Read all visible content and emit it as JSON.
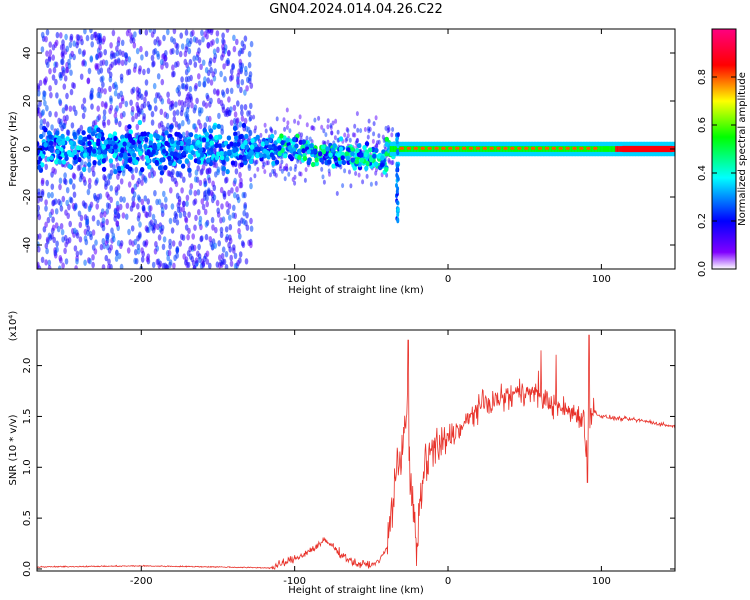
{
  "title": "GN04.2024.014.04.26.C22",
  "chart_data": [
    {
      "type": "heatmap",
      "xlabel": "Height of straight line (km)",
      "ylabel": "Frequency (Hz)",
      "xlim": [
        -268,
        148
      ],
      "ylim": [
        -50,
        50
      ],
      "xticks": [
        -200,
        -100,
        0,
        100
      ],
      "xtick_labels": [
        "-200",
        "-100",
        "0",
        "100"
      ],
      "yticks": [
        -40,
        -20,
        0,
        20,
        40
      ],
      "ytick_labels": [
        "-40",
        "-20",
        "0",
        "20",
        "40"
      ],
      "colorbar": {
        "label": "Normalized spectral amplitude",
        "range": [
          0,
          1
        ],
        "ticks": [
          0,
          0.2,
          0.4,
          0.6,
          0.8
        ],
        "tick_labels": [
          "0.0",
          "0.2",
          "0.4",
          "0.6",
          "0.8"
        ],
        "colors": [
          "#ffffff",
          "#8000ff",
          "#0000ff",
          "#00ffff",
          "#00ff00",
          "#ffff00",
          "#ff0000",
          "#ff0080"
        ]
      },
      "features": [
        {
          "x": [
            -268,
            -130
          ],
          "freq_spread": 50,
          "amplitude": 0.25
        },
        {
          "x": [
            -130,
            -35
          ],
          "freq_spread": 8,
          "amplitude": 0.4
        },
        {
          "x": [
            -35,
            148
          ],
          "freq_spread": 2,
          "amplitude": 0.7
        },
        {
          "x": [
            110,
            148
          ],
          "freq_spread": 1,
          "amplitude": 0.85
        }
      ]
    },
    {
      "type": "line",
      "xlabel": "Height of straight line (km)",
      "ylabel": "SNR (10 * v/v)",
      "y_multiplier": "(x10⁴)",
      "xlim": [
        -268,
        148
      ],
      "ylim": [
        -0.02,
        2.35
      ],
      "xticks": [
        -200,
        -100,
        0,
        100
      ],
      "xtick_labels": [
        "-200",
        "-100",
        "0",
        "100"
      ],
      "yticks": [
        0,
        0.5,
        1.0,
        1.5,
        2.0
      ],
      "ytick_labels": [
        "0.0",
        "0.5",
        "1.0",
        "1.5",
        "2.0"
      ],
      "color": "#e8322a",
      "series": [
        {
          "x": [
            -268,
            -200,
            -150,
            -115,
            -100,
            -90,
            -80,
            -75,
            -70,
            -60,
            -50,
            -45,
            -40,
            -35,
            -30,
            -27,
            -25,
            -22,
            -20,
            -18,
            -15,
            -10,
            -5,
            0,
            10,
            20,
            30,
            40,
            50,
            60,
            70,
            80,
            88,
            90,
            92,
            95,
            100,
            110,
            120,
            130,
            140,
            148
          ],
          "y": [
            0.02,
            0.03,
            0.02,
            0.01,
            0.1,
            0.18,
            0.28,
            0.22,
            0.15,
            0.05,
            0.04,
            0.08,
            0.2,
            0.8,
            1.2,
            1.6,
            1.0,
            0.4,
            0.15,
            0.7,
            1.0,
            1.2,
            1.15,
            1.3,
            1.4,
            1.6,
            1.65,
            1.7,
            1.75,
            1.7,
            1.6,
            1.55,
            1.5,
            1.2,
            1.55,
            1.55,
            1.5,
            1.48,
            1.47,
            1.45,
            1.42,
            1.4
          ]
        }
      ]
    }
  ]
}
